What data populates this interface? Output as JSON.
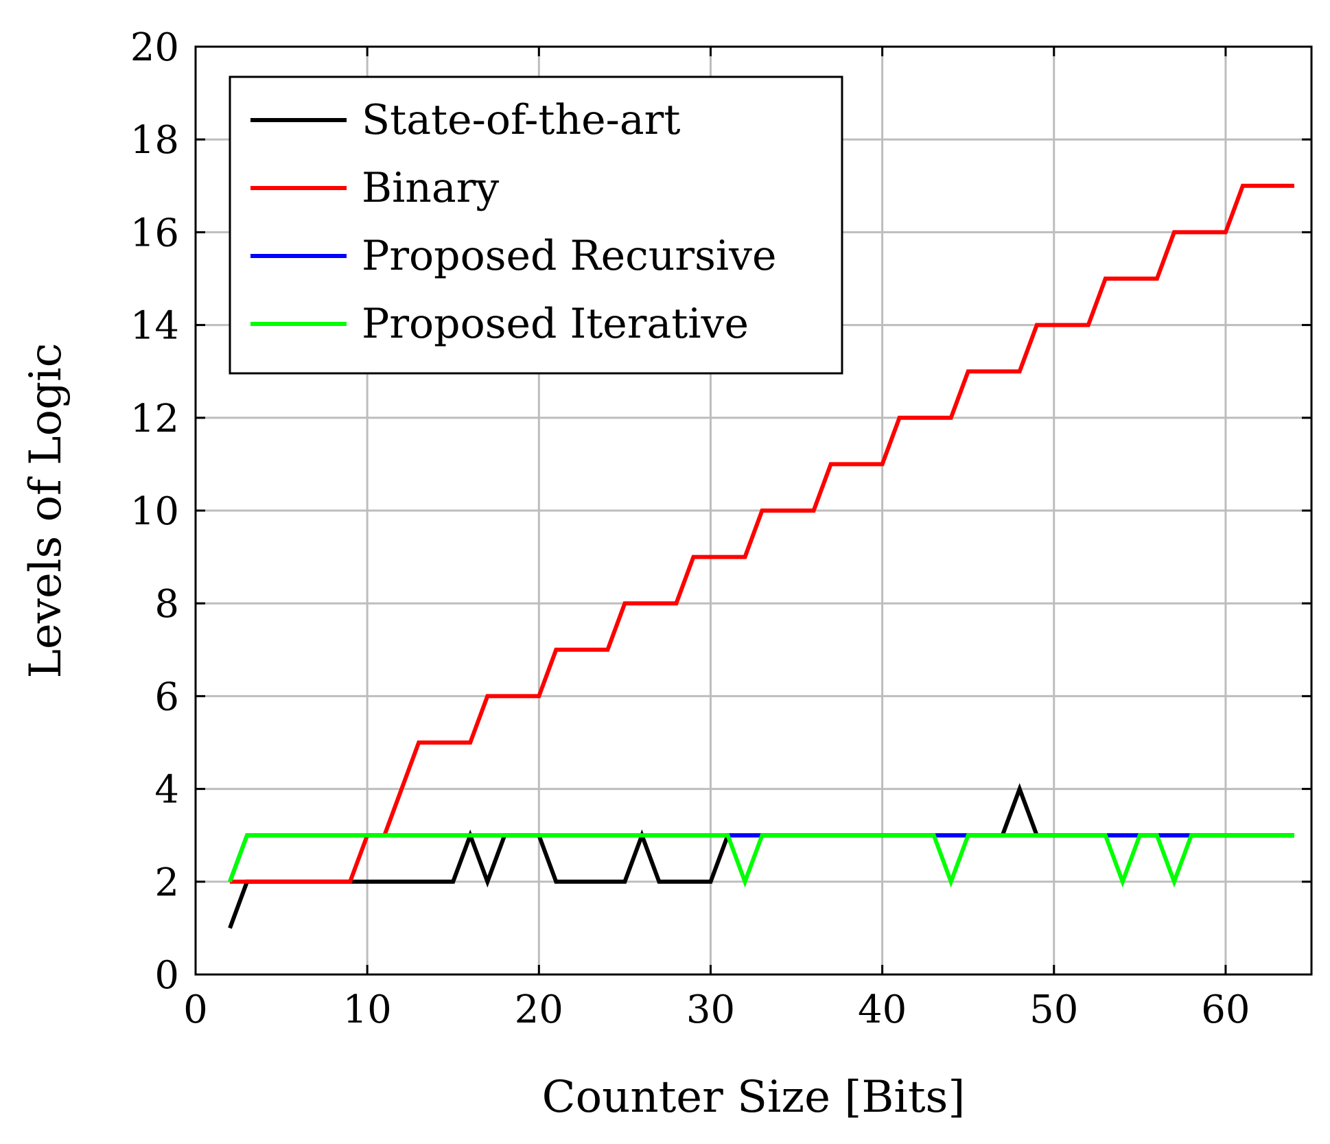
{
  "chart_data": {
    "type": "line",
    "title": "",
    "xlabel": "Counter Size [Bits]",
    "ylabel": "Levels of Logic",
    "xlim": [
      0,
      65
    ],
    "ylim": [
      0,
      20
    ],
    "xticks": [
      0,
      10,
      20,
      30,
      40,
      50,
      60
    ],
    "yticks": [
      0,
      2,
      4,
      6,
      8,
      10,
      12,
      14,
      16,
      18,
      20
    ],
    "grid": true,
    "legend_position": "top-left",
    "series": [
      {
        "name": "State-of-the-art",
        "color": "#000000",
        "x": [
          2,
          3,
          4,
          5,
          6,
          7,
          8,
          9,
          10,
          11,
          12,
          13,
          14,
          15,
          16,
          17,
          18,
          19,
          20,
          21,
          22,
          23,
          24,
          25,
          26,
          27,
          28,
          29,
          30,
          31,
          32,
          33,
          34,
          35,
          36,
          37,
          38,
          39,
          40,
          41,
          42,
          43,
          44,
          45,
          46,
          47,
          48,
          49,
          50,
          51,
          52,
          53,
          54,
          55,
          56,
          57,
          58,
          59,
          60,
          61,
          62,
          63,
          64
        ],
        "y": [
          1,
          2,
          2,
          2,
          2,
          2,
          2,
          2,
          2,
          2,
          2,
          2,
          2,
          2,
          3,
          2,
          3,
          3,
          3,
          2,
          2,
          2,
          2,
          2,
          3,
          2,
          2,
          2,
          2,
          3,
          3,
          3,
          3,
          3,
          3,
          3,
          3,
          3,
          3,
          3,
          3,
          3,
          3,
          3,
          3,
          3,
          4,
          3,
          3,
          3,
          3,
          3,
          3,
          3,
          3,
          3,
          3,
          3,
          3,
          3,
          3,
          3,
          3
        ]
      },
      {
        "name": "Binary",
        "color": "#ff0000",
        "x": [
          2,
          3,
          4,
          5,
          6,
          7,
          8,
          9,
          10,
          11,
          12,
          13,
          14,
          15,
          16,
          17,
          18,
          19,
          20,
          21,
          22,
          23,
          24,
          25,
          26,
          27,
          28,
          29,
          30,
          31,
          32,
          33,
          34,
          35,
          36,
          37,
          38,
          39,
          40,
          41,
          42,
          43,
          44,
          45,
          46,
          47,
          48,
          49,
          50,
          51,
          52,
          53,
          54,
          55,
          56,
          57,
          58,
          59,
          60,
          61,
          62,
          63,
          64
        ],
        "y": [
          2,
          2,
          2,
          2,
          2,
          2,
          2,
          2,
          3,
          3,
          4,
          5,
          5,
          5,
          5,
          6,
          6,
          6,
          6,
          7,
          7,
          7,
          7,
          8,
          8,
          8,
          8,
          9,
          9,
          9,
          9,
          10,
          10,
          10,
          10,
          11,
          11,
          11,
          11,
          12,
          12,
          12,
          12,
          13,
          13,
          13,
          13,
          14,
          14,
          14,
          14,
          15,
          15,
          15,
          15,
          16,
          16,
          16,
          16,
          17,
          17,
          17,
          17
        ]
      },
      {
        "name": "Proposed Recursive",
        "color": "#0000ff",
        "x": [
          2,
          3,
          4,
          5,
          6,
          7,
          8,
          9,
          10,
          11,
          12,
          13,
          14,
          15,
          16,
          17,
          18,
          19,
          20,
          21,
          22,
          23,
          24,
          25,
          26,
          27,
          28,
          29,
          30,
          31,
          32,
          33,
          34,
          35,
          36,
          37,
          38,
          39,
          40,
          41,
          42,
          43,
          44,
          45,
          46,
          47,
          48,
          49,
          50,
          51,
          52,
          53,
          54,
          55,
          56,
          57,
          58,
          59,
          60,
          61,
          62,
          63,
          64
        ],
        "y": [
          2,
          3,
          3,
          3,
          3,
          3,
          3,
          3,
          3,
          3,
          3,
          3,
          3,
          3,
          3,
          3,
          3,
          3,
          3,
          3,
          3,
          3,
          3,
          3,
          3,
          3,
          3,
          3,
          3,
          3,
          3,
          3,
          3,
          3,
          3,
          3,
          3,
          3,
          3,
          3,
          3,
          3,
          3,
          3,
          3,
          3,
          3,
          3,
          3,
          3,
          3,
          3,
          3,
          3,
          3,
          3,
          3,
          3,
          3,
          3,
          3,
          3,
          3
        ]
      },
      {
        "name": "Proposed Iterative",
        "color": "#00ff00",
        "x": [
          2,
          3,
          4,
          5,
          6,
          7,
          8,
          9,
          10,
          11,
          12,
          13,
          14,
          15,
          16,
          17,
          18,
          19,
          20,
          21,
          22,
          23,
          24,
          25,
          26,
          27,
          28,
          29,
          30,
          31,
          32,
          33,
          34,
          35,
          36,
          37,
          38,
          39,
          40,
          41,
          42,
          43,
          44,
          45,
          46,
          47,
          48,
          49,
          50,
          51,
          52,
          53,
          54,
          55,
          56,
          57,
          58,
          59,
          60,
          61,
          62,
          63,
          64
        ],
        "y": [
          2,
          3,
          3,
          3,
          3,
          3,
          3,
          3,
          3,
          3,
          3,
          3,
          3,
          3,
          3,
          3,
          3,
          3,
          3,
          3,
          3,
          3,
          3,
          3,
          3,
          3,
          3,
          3,
          3,
          3,
          2,
          3,
          3,
          3,
          3,
          3,
          3,
          3,
          3,
          3,
          3,
          3,
          2,
          3,
          3,
          3,
          3,
          3,
          3,
          3,
          3,
          3,
          2,
          3,
          3,
          2,
          3,
          3,
          3,
          3,
          3,
          3,
          3
        ]
      }
    ]
  }
}
